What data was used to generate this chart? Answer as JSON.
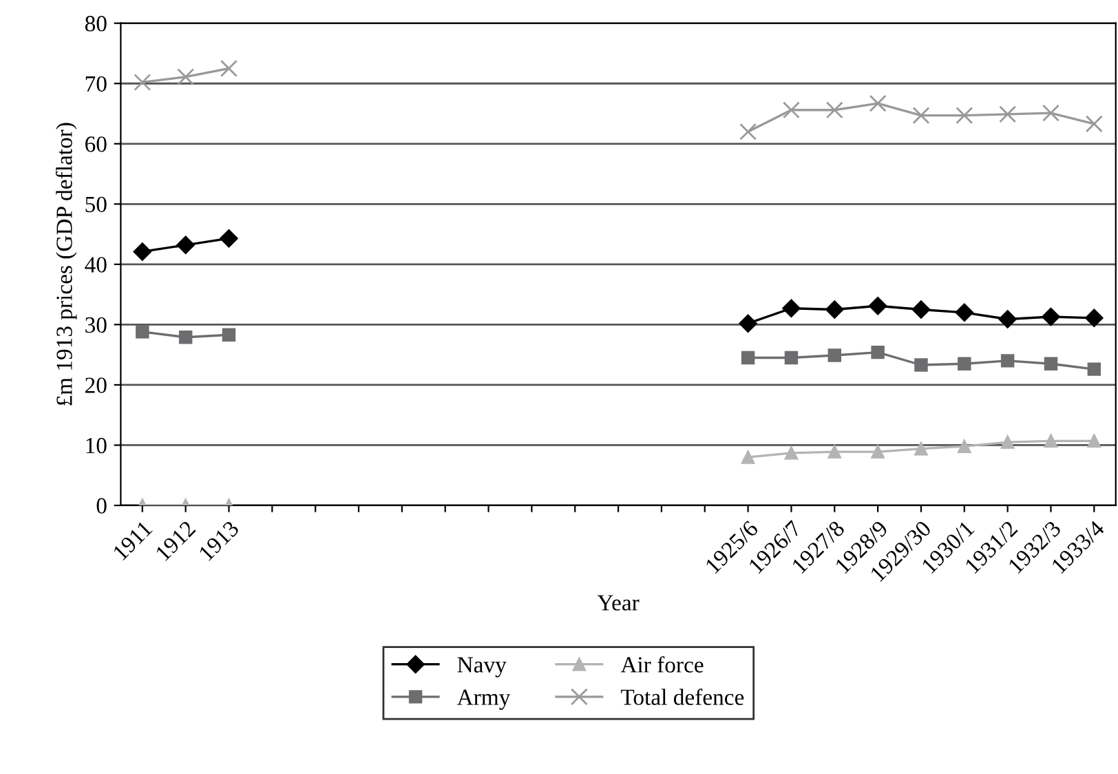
{
  "chart_data": {
    "type": "line",
    "xlabel": "Year",
    "ylabel": "£m 1913 prices (GDP deflator)",
    "categories": [
      "1911",
      "1912",
      "1913",
      null,
      null,
      null,
      null,
      null,
      null,
      null,
      null,
      null,
      null,
      null,
      "1925/6",
      "1926/7",
      "1927/8",
      "1928/9",
      "1929/30",
      "1930/1",
      "1931/2",
      "1932/3",
      "1933/4"
    ],
    "series": [
      {
        "name": "Navy",
        "color": "#000000",
        "marker": "diamond",
        "values": [
          42.1,
          43.2,
          44.3,
          null,
          null,
          null,
          null,
          null,
          null,
          null,
          null,
          null,
          null,
          null,
          30.2,
          32.7,
          32.5,
          33.1,
          32.5,
          32.0,
          30.9,
          31.3,
          31.1
        ]
      },
      {
        "name": "Army",
        "color": "#6d6d6f",
        "marker": "square",
        "values": [
          28.8,
          27.9,
          28.3,
          null,
          null,
          null,
          null,
          null,
          null,
          null,
          null,
          null,
          null,
          null,
          24.5,
          24.5,
          24.9,
          25.4,
          23.3,
          23.5,
          24.0,
          23.5,
          22.6
        ]
      },
      {
        "name": "Air force",
        "color": "#b4b4b4",
        "marker": "triangle",
        "values": [
          0,
          0,
          0,
          null,
          null,
          null,
          null,
          null,
          null,
          null,
          null,
          null,
          null,
          null,
          8.0,
          8.7,
          8.9,
          8.9,
          9.4,
          9.8,
          10.5,
          10.7,
          10.7
        ]
      },
      {
        "name": "Total defence",
        "color": "#999999",
        "marker": "cross",
        "values": [
          70.2,
          71.1,
          72.5,
          null,
          null,
          null,
          null,
          null,
          null,
          null,
          null,
          null,
          null,
          null,
          62.0,
          65.6,
          65.6,
          66.7,
          64.7,
          64.7,
          64.9,
          65.1,
          63.3
        ]
      }
    ],
    "ylim": [
      0,
      80
    ],
    "yticks": [
      0,
      10,
      20,
      30,
      40,
      50,
      60,
      70,
      80
    ],
    "grid": "y",
    "legend": "bottom"
  }
}
